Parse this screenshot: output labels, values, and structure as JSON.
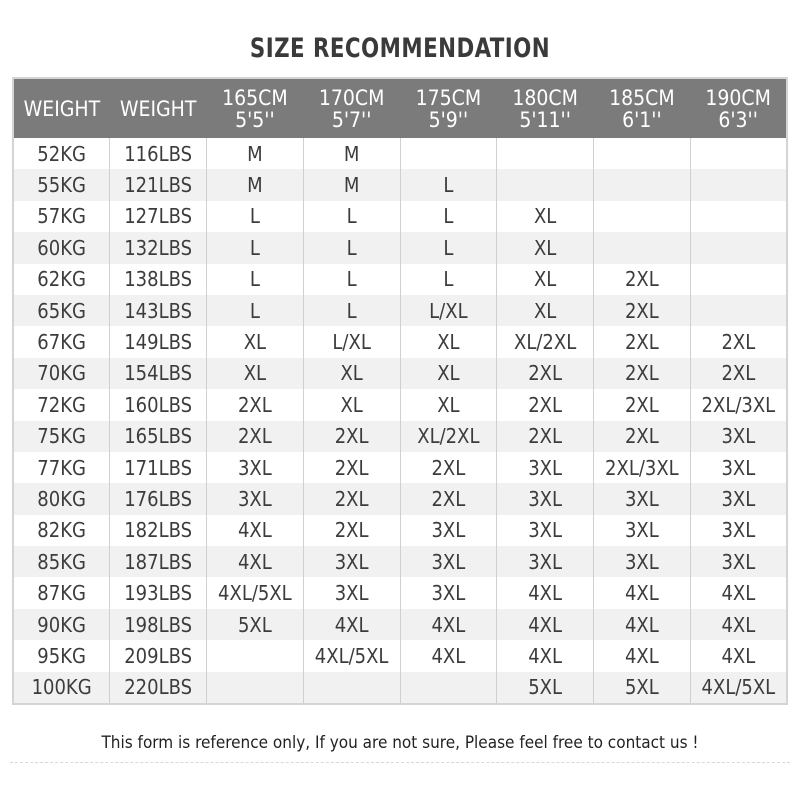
{
  "title": "SIZE RECOMMENDATION",
  "headers": [
    {
      "line1": "WEIGHT",
      "line2": ""
    },
    {
      "line1": "WEIGHT",
      "line2": ""
    },
    {
      "line1": "165CM",
      "line2": "5'5''"
    },
    {
      "line1": "170CM",
      "line2": "5'7''"
    },
    {
      "line1": "175CM",
      "line2": "5'9''"
    },
    {
      "line1": "180CM",
      "line2": "5'11''"
    },
    {
      "line1": "185CM",
      "line2": "6'1''"
    },
    {
      "line1": "190CM",
      "line2": "6'3''"
    }
  ],
  "rows": [
    [
      "52KG",
      "116LBS",
      "M",
      "M",
      "",
      "",
      "",
      ""
    ],
    [
      "55KG",
      "121LBS",
      "M",
      "M",
      "L",
      "",
      "",
      ""
    ],
    [
      "57KG",
      "127LBS",
      "L",
      "L",
      "L",
      "XL",
      "",
      ""
    ],
    [
      "60KG",
      "132LBS",
      "L",
      "L",
      "L",
      "XL",
      "",
      ""
    ],
    [
      "62KG",
      "138LBS",
      "L",
      "L",
      "L",
      "XL",
      "2XL",
      ""
    ],
    [
      "65KG",
      "143LBS",
      "L",
      "L",
      "L/XL",
      "XL",
      "2XL",
      ""
    ],
    [
      "67KG",
      "149LBS",
      "XL",
      "L/XL",
      "XL",
      "XL/2XL",
      "2XL",
      "2XL"
    ],
    [
      "70KG",
      "154LBS",
      "XL",
      "XL",
      "XL",
      "2XL",
      "2XL",
      "2XL"
    ],
    [
      "72KG",
      "160LBS",
      "2XL",
      "XL",
      "XL",
      "2XL",
      "2XL",
      "2XL/3XL"
    ],
    [
      "75KG",
      "165LBS",
      "2XL",
      "2XL",
      "XL/2XL",
      "2XL",
      "2XL",
      "3XL"
    ],
    [
      "77KG",
      "171LBS",
      "3XL",
      "2XL",
      "2XL",
      "3XL",
      "2XL/3XL",
      "3XL"
    ],
    [
      "80KG",
      "176LBS",
      "3XL",
      "2XL",
      "2XL",
      "3XL",
      "3XL",
      "3XL"
    ],
    [
      "82KG",
      "182LBS",
      "4XL",
      "2XL",
      "3XL",
      "3XL",
      "3XL",
      "3XL"
    ],
    [
      "85KG",
      "187LBS",
      "4XL",
      "3XL",
      "3XL",
      "3XL",
      "3XL",
      "3XL"
    ],
    [
      "87KG",
      "193LBS",
      "4XL/5XL",
      "3XL",
      "3XL",
      "4XL",
      "4XL",
      "4XL"
    ],
    [
      "90KG",
      "198LBS",
      "5XL",
      "4XL",
      "4XL",
      "4XL",
      "4XL",
      "4XL"
    ],
    [
      "95KG",
      "209LBS",
      "",
      "4XL/5XL",
      "4XL",
      "4XL",
      "4XL",
      "4XL"
    ],
    [
      "100KG",
      "220LBS",
      "",
      "",
      "",
      "5XL",
      "5XL",
      "4XL/5XL"
    ]
  ],
  "note": "This form is reference only, If you are not sure, Please feel free to contact us !",
  "colors": {
    "header_bg": "#7b7b7b",
    "alt_row_bg": "#f1f1f1"
  }
}
